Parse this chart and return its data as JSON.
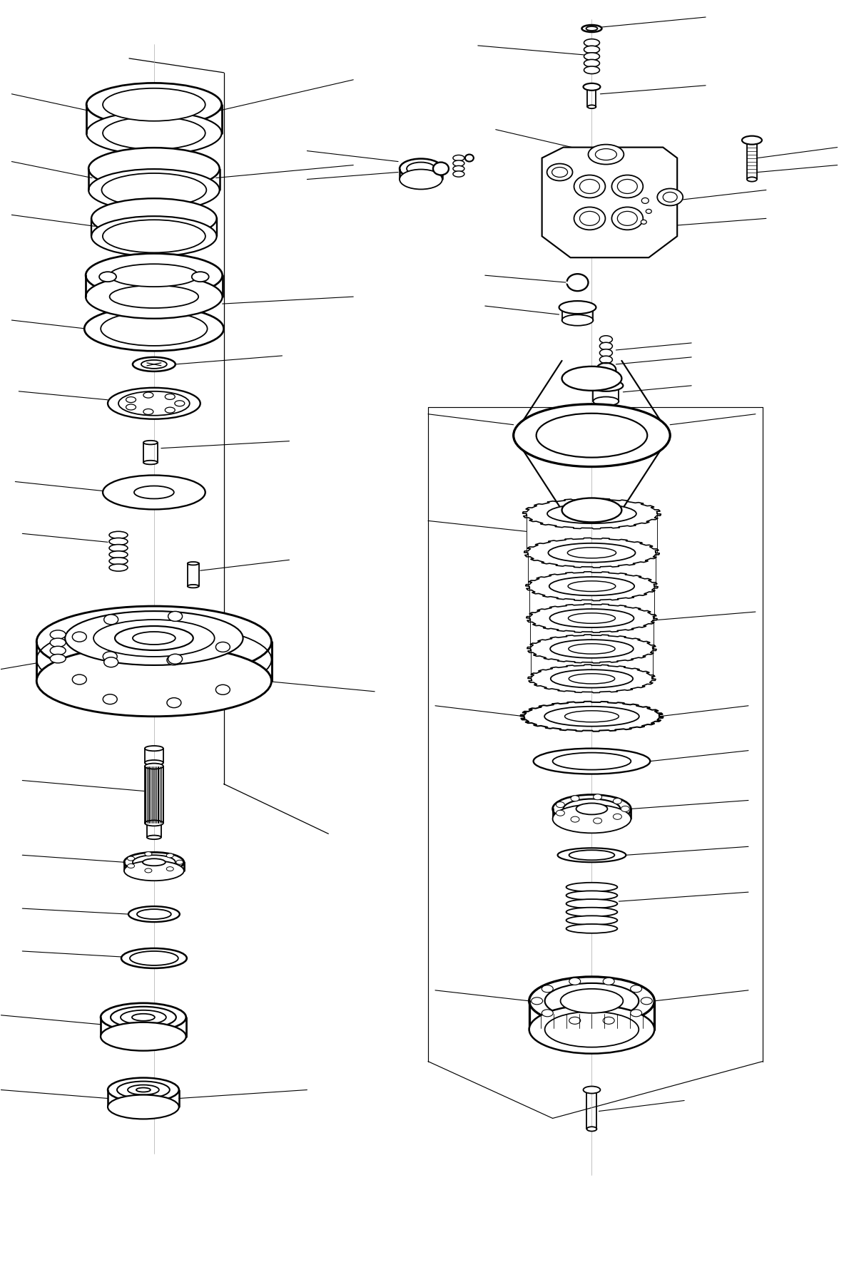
{
  "bg_color": "#ffffff",
  "line_color": "#000000",
  "lw": 1.3,
  "fig_width": 11.97,
  "fig_height": 17.91,
  "dpi": 100
}
